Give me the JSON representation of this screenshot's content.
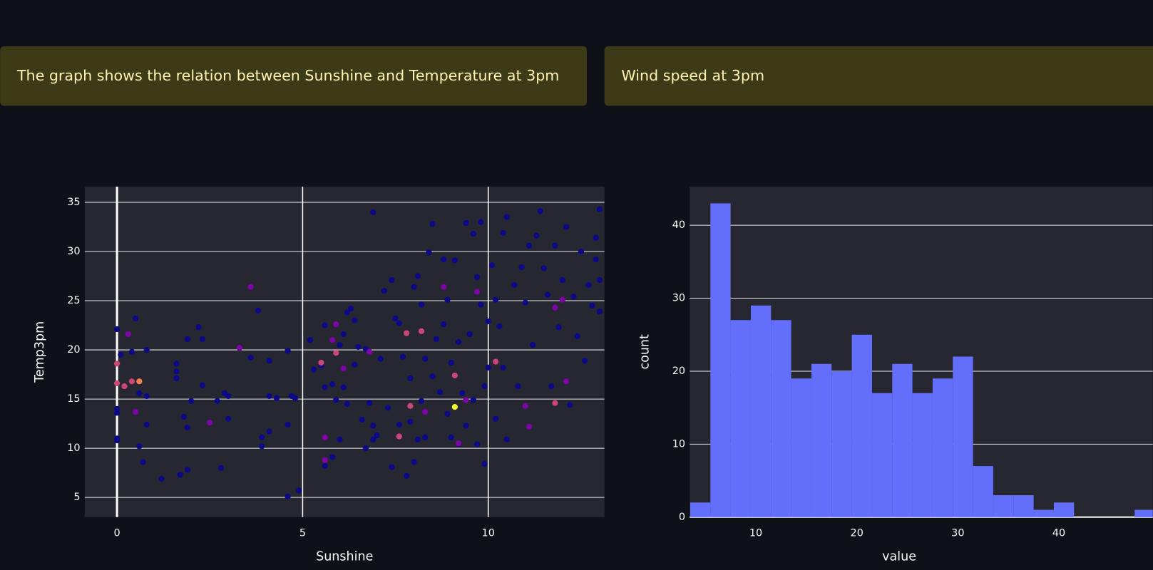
{
  "panels": [
    {
      "text": "The graph shows the relation between Sunshine and Temperature at 3pm"
    },
    {
      "text": "Wind speed at 3pm"
    }
  ],
  "chart_data": [
    {
      "type": "scatter",
      "xlabel": "Sunshine",
      "ylabel": "Temp3pm",
      "xlim": [
        -0.87,
        13.13
      ],
      "ylim": [
        3,
        36.6
      ],
      "xticks": [
        0,
        5,
        10
      ],
      "yticks": [
        5,
        10,
        15,
        20,
        25,
        30,
        35
      ],
      "grid": true,
      "series": [
        {
          "color": "#0d0887",
          "x": [
            0,
            0,
            0,
            0,
            0,
            0.1,
            0.4,
            0.5,
            0.6,
            0.6,
            0.7,
            0.8,
            0.8,
            0.8,
            1.2,
            1.6,
            1.6,
            1.6,
            1.7,
            1.8,
            1.9,
            1.9,
            1.9,
            2.0,
            2.2,
            2.3,
            2.3,
            2.7,
            2.8,
            2.9,
            3.0,
            3.0,
            3.6,
            3.8,
            3.9,
            3.9,
            4.1,
            4.1,
            4.1,
            4.3,
            4.6,
            4.6,
            4.7,
            4.8,
            4.6,
            4.9,
            5.2,
            5.3,
            5.5,
            5.6,
            5.6,
            5.6,
            5.8,
            5.8,
            5.9,
            6.0,
            6.0,
            6.1,
            6.1,
            6.2,
            6.2,
            6.3,
            6.4,
            6.4,
            6.5,
            6.6,
            6.7,
            6.7,
            6.8,
            6.9,
            6.9,
            6.9,
            7.0,
            7.1,
            7.2,
            7.3,
            7.4,
            7.4,
            7.5,
            7.6,
            7.6,
            7.7,
            7.8,
            7.9,
            7.9,
            8.0,
            8.0,
            8.1,
            8.1,
            8.2,
            8.2,
            8.3,
            8.3,
            8.4,
            8.5,
            8.5,
            8.6,
            8.7,
            8.8,
            8.8,
            8.9,
            8.9,
            9.0,
            9.0,
            9.1,
            9.2,
            9.2,
            9.3,
            9.4,
            9.4,
            9.5,
            9.6,
            9.6,
            9.7,
            9.7,
            9.8,
            9.8,
            9.9,
            9.9,
            10.0,
            10.0,
            10.1,
            10.2,
            10.2,
            10.3,
            10.4,
            10.4,
            10.5,
            10.5,
            10.7,
            10.8,
            10.9,
            11.0,
            11.1,
            11.2,
            11.3,
            11.4,
            11.5,
            11.6,
            11.7,
            11.8,
            11.9,
            12.0,
            12.1,
            12.2,
            12.3,
            12.4,
            12.5,
            12.6,
            12.8,
            12.9,
            13.0,
            13.0,
            13.0,
            12.7,
            12.9
          ],
          "values": [
            22.1,
            14,
            13.6,
            11,
            10.8,
            19.5,
            19.8,
            23.2,
            15.6,
            10.2,
            8.6,
            15.3,
            12.4,
            20,
            6.9,
            18.6,
            17.8,
            17.1,
            7.3,
            13.2,
            12.1,
            7.8,
            21.1,
            14.8,
            22.3,
            21.1,
            16.4,
            14.8,
            8,
            15.6,
            15.3,
            13,
            19.2,
            24,
            11.1,
            10.2,
            18.9,
            15.3,
            11.7,
            15.1,
            19.9,
            12.4,
            15.3,
            15.1,
            5.1,
            5.7,
            21,
            18,
            18.4,
            22.5,
            16.2,
            8.2,
            16.5,
            9.1,
            14.9,
            20.5,
            10.9,
            21.6,
            16.2,
            23.8,
            14.5,
            24.2,
            23,
            18.5,
            20.3,
            12.9,
            10,
            20.1,
            14.6,
            12.3,
            10.9,
            34,
            11.3,
            19.1,
            26,
            14.1,
            27.1,
            8.1,
            23.2,
            22.7,
            12.4,
            19.3,
            7.2,
            17.1,
            12.7,
            8.6,
            26.4,
            27.5,
            10.9,
            24.6,
            14.8,
            19.1,
            11.1,
            29.9,
            17.3,
            32.8,
            21.1,
            15.7,
            29.2,
            22.6,
            25.1,
            13.5,
            18.7,
            11.1,
            29.1,
            20.8,
            10.4,
            15.6,
            12.3,
            32.9,
            21.6,
            14.9,
            31.8,
            27.4,
            10.4,
            24.6,
            33,
            8.4,
            16.3,
            18.2,
            22.9,
            28.6,
            25.1,
            13,
            22.4,
            18.2,
            31.9,
            10.9,
            33.5,
            26.6,
            16.3,
            28.4,
            24.8,
            30.6,
            20.5,
            31.6,
            34.1,
            28.3,
            25.6,
            16.3,
            30.6,
            22.3,
            27.1,
            32.5,
            14.4,
            25.4,
            21.4,
            30,
            18.9,
            24.5,
            31.4,
            34.3,
            27.1,
            23.9,
            26.6,
            29.2
          ]
        },
        {
          "color": "#7e03a8",
          "x": [
            0.3,
            0.5,
            2.5,
            3.3,
            3.6,
            5.6,
            5.9,
            6.1,
            6.8,
            8.3,
            8.8,
            9.2,
            9.4,
            9.7,
            11.0,
            11.1,
            11.8,
            12.0,
            12.1,
            5.6,
            5.8
          ],
          "values": [
            21.6,
            13.7,
            12.6,
            20.2,
            26.4,
            11.1,
            22.6,
            18.1,
            19.8,
            13.7,
            26.4,
            10.5,
            14.9,
            25.9,
            14.3,
            12.2,
            24.3,
            25.1,
            16.8,
            8.8,
            21
          ]
        },
        {
          "color": "#cc4778",
          "x": [
            0,
            0,
            0.2,
            0.4,
            5.5,
            5.9,
            7.6,
            7.8,
            7.9,
            8.2,
            9.1,
            10.2,
            11.8
          ],
          "values": [
            18.6,
            16.6,
            16.3,
            16.8,
            18.7,
            19.7,
            11.2,
            21.7,
            14.3,
            21.9,
            17.4,
            18.8,
            14.6
          ]
        },
        {
          "color": "#f0804f",
          "x": [
            0.6
          ],
          "values": [
            16.8
          ]
        },
        {
          "color": "#f0f921",
          "x": [
            9.1
          ],
          "values": [
            14.2
          ]
        }
      ]
    },
    {
      "type": "histogram",
      "xlabel": "value",
      "ylabel": "count",
      "color": "#636efa",
      "xlim": [
        3.45,
        49.3
      ],
      "ylim": [
        0,
        45.3
      ],
      "xticks": [
        10,
        20,
        30,
        40
      ],
      "yticks": [
        0,
        10,
        20,
        30,
        40
      ],
      "grid": true,
      "bins": [
        3.5,
        5.5,
        7.5,
        9.5,
        11.5,
        13.5,
        15.5,
        17.5,
        19.5,
        21.5,
        23.5,
        25.5,
        27.5,
        29.5,
        31.5,
        33.5,
        35.5,
        37.5,
        39.5,
        41.5,
        43.5,
        45.5,
        47.5,
        49.5
      ],
      "values": [
        2,
        43,
        27,
        29,
        27,
        19,
        21,
        20,
        25,
        17,
        21,
        17,
        19,
        22,
        7,
        3,
        3,
        1,
        2,
        0,
        0,
        0,
        1
      ]
    }
  ]
}
